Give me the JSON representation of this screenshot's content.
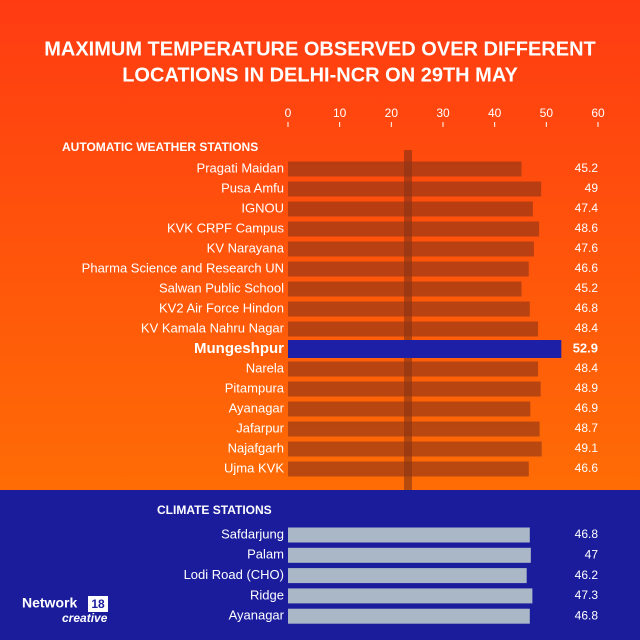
{
  "chart_data": {
    "type": "bar",
    "orientation": "horizontal",
    "title": [
      "MAXIMUM TEMPERATURE OBSERVED OVER DIFFERENT",
      "LOCATIONS IN DELHI-NCR ON 29TH MAY"
    ],
    "xlim": [
      0,
      60
    ],
    "xticks": [
      0,
      10,
      20,
      30,
      40,
      50,
      60
    ],
    "groups": [
      {
        "name": "AUTOMATIC WEATHER STATIONS",
        "categories": [
          "Pragati Maidan",
          "Pusa Amfu",
          "IGNOU",
          "KVK CRPF Campus",
          "KV Narayana",
          "Pharma Science and Research UN",
          "Salwan Public School",
          "KV2 Air Force Hindon",
          "KV Kamala Nahru Nagar",
          "Mungeshpur",
          "Narela",
          "Pitampura",
          "Ayanagar",
          "Jafarpur",
          "Najafgarh",
          "Ujma KVK"
        ],
        "values": [
          45.2,
          49,
          47.4,
          48.6,
          47.6,
          46.6,
          45.2,
          46.8,
          48.4,
          52.9,
          48.4,
          48.9,
          46.9,
          48.7,
          49.1,
          46.6
        ],
        "colors": [
          "#8c3417",
          "#8c3417",
          "#8c3417",
          "#8c3417",
          "#8c3417",
          "#8c3417",
          "#8c3417",
          "#8c3417",
          "#8c3417",
          "#1d1fa6",
          "#8c3417",
          "#8c3417",
          "#8c3417",
          "#8c3417",
          "#8c3417",
          "#8c3417"
        ]
      },
      {
        "name": "CLIMATE STATIONS",
        "categories": [
          "Safdarjung",
          "Palam",
          "Lodi Road (CHO)",
          "Ridge",
          "Ayanagar"
        ],
        "values": [
          46.8,
          47,
          46.2,
          47.3,
          46.8
        ],
        "colors": [
          "#a9b7c6",
          "#a9b7c6",
          "#a9b7c6",
          "#a9b7c6",
          "#a9b7c6"
        ]
      }
    ]
  },
  "footer": {
    "brand": "Network",
    "brand_number": "18",
    "brand_sub": "creative"
  }
}
